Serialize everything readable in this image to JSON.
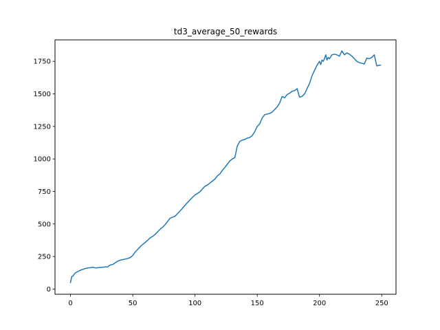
{
  "chart_data": {
    "type": "line",
    "title": "td3_average_50_rewards",
    "xlabel": "",
    "ylabel": "",
    "xlim": [
      -12.45,
      261.45
    ],
    "ylim": [
      -40,
      1915
    ],
    "xticks": [
      0,
      50,
      100,
      150,
      200,
      250
    ],
    "yticks": [
      0,
      250,
      500,
      750,
      1000,
      1250,
      1500,
      1750
    ],
    "grid": false,
    "legend": "none",
    "color": "#1f77b4",
    "series": [
      {
        "x": [
          0,
          1,
          2,
          3,
          4,
          5,
          6,
          8,
          10,
          12,
          14,
          16,
          18,
          20,
          22,
          24,
          26,
          28,
          30,
          31,
          32,
          34,
          36,
          38,
          40,
          42,
          44,
          46,
          48,
          50,
          52,
          54,
          56,
          58,
          60,
          62,
          64,
          66,
          68,
          70,
          72,
          74,
          76,
          78,
          80,
          82,
          84,
          86,
          88,
          90,
          92,
          94,
          96,
          98,
          100,
          102,
          104,
          106,
          108,
          110,
          112,
          114,
          116,
          118,
          120,
          122,
          124,
          126,
          128,
          130,
          132,
          134,
          136,
          138,
          140,
          142,
          144,
          146,
          148,
          150,
          152,
          154,
          156,
          158,
          160,
          162,
          164,
          166,
          168,
          170,
          172,
          174,
          176,
          178,
          180,
          182,
          184,
          186,
          188,
          190,
          192,
          194,
          196,
          198,
          200,
          201,
          202,
          203,
          204,
          205,
          206,
          207,
          208,
          210,
          212,
          214,
          216,
          218,
          220,
          222,
          224,
          226,
          228,
          230,
          232,
          234,
          236,
          238,
          240,
          242,
          244,
          246,
          248,
          249
        ],
        "y": [
          50,
          95,
          100,
          115,
          125,
          130,
          135,
          145,
          152,
          158,
          162,
          165,
          167,
          162,
          164,
          166,
          168,
          170,
          170,
          180,
          185,
          190,
          202,
          215,
          222,
          226,
          230,
          235,
          242,
          258,
          285,
          305,
          325,
          343,
          358,
          375,
          393,
          405,
          420,
          440,
          460,
          475,
          495,
          520,
          545,
          552,
          560,
          580,
          600,
          622,
          645,
          665,
          685,
          705,
          723,
          735,
          748,
          770,
          790,
          800,
          815,
          830,
          845,
          870,
          885,
          913,
          935,
          960,
          985,
          1000,
          1010,
          1100,
          1135,
          1145,
          1150,
          1160,
          1165,
          1180,
          1210,
          1250,
          1270,
          1315,
          1340,
          1345,
          1350,
          1360,
          1380,
          1400,
          1430,
          1480,
          1470,
          1495,
          1505,
          1520,
          1525,
          1540,
          1475,
          1480,
          1500,
          1540,
          1580,
          1640,
          1680,
          1720,
          1750,
          1725,
          1760,
          1750,
          1770,
          1800,
          1760,
          1780,
          1770,
          1800,
          1805,
          1800,
          1790,
          1830,
          1800,
          1815,
          1805,
          1790,
          1770,
          1750,
          1740,
          1735,
          1730,
          1775,
          1770,
          1780,
          1800,
          1715,
          1720,
          1720
        ]
      }
    ]
  }
}
